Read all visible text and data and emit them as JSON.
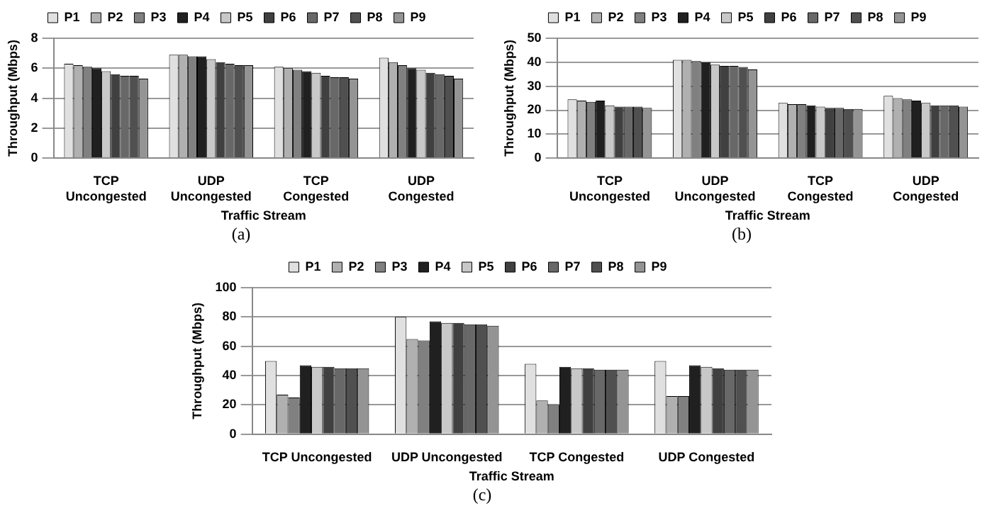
{
  "chart_data": [
    {
      "type": "bar",
      "xlabel": "Traffic Stream",
      "ylabel": "Throughput (Mbps)",
      "categories": [
        "TCP Uncongested",
        "UDP Uncongested",
        "TCP Congested",
        "UDP Congested"
      ],
      "ylim": [
        0,
        8
      ],
      "yticks": [
        0,
        2,
        4,
        6,
        8
      ],
      "grid": "y",
      "legend": "top",
      "annotations": [
        "(a)"
      ],
      "series": [
        {
          "name": "P1",
          "color": "#e0e0e0",
          "values": [
            6.3,
            6.9,
            6.1,
            6.7
          ]
        },
        {
          "name": "P2",
          "color": "#b0b0b0",
          "values": [
            6.2,
            6.9,
            6.0,
            6.4
          ]
        },
        {
          "name": "P3",
          "color": "#808080",
          "values": [
            6.1,
            6.8,
            5.9,
            6.2
          ]
        },
        {
          "name": "P4",
          "color": "#202020",
          "values": [
            6.0,
            6.8,
            5.8,
            6.0
          ]
        },
        {
          "name": "P5",
          "color": "#c8c8c8",
          "values": [
            5.8,
            6.6,
            5.7,
            5.9
          ]
        },
        {
          "name": "P6",
          "color": "#404040",
          "values": [
            5.6,
            6.4,
            5.5,
            5.7
          ]
        },
        {
          "name": "P7",
          "color": "#686868",
          "values": [
            5.5,
            6.3,
            5.4,
            5.6
          ]
        },
        {
          "name": "P8",
          "color": "#505050",
          "values": [
            5.5,
            6.2,
            5.4,
            5.5
          ]
        },
        {
          "name": "P9",
          "color": "#949494",
          "values": [
            5.3,
            6.2,
            5.3,
            5.3
          ]
        }
      ]
    },
    {
      "type": "bar",
      "xlabel": "Traffic Stream",
      "ylabel": "Throughput (Mbps)",
      "categories": [
        "TCP Uncongested",
        "UDP Uncongested",
        "TCP Congested",
        "UDP Congested"
      ],
      "ylim": [
        0,
        50
      ],
      "yticks": [
        0,
        10,
        20,
        30,
        40,
        50
      ],
      "grid": "y",
      "legend": "top",
      "annotations": [
        "(b)"
      ],
      "series": [
        {
          "name": "P1",
          "color": "#e0e0e0",
          "values": [
            24.5,
            41,
            23,
            26
          ]
        },
        {
          "name": "P2",
          "color": "#b0b0b0",
          "values": [
            24,
            41,
            22.5,
            25
          ]
        },
        {
          "name": "P3",
          "color": "#808080",
          "values": [
            23.5,
            40.5,
            22.5,
            24.5
          ]
        },
        {
          "name": "P4",
          "color": "#202020",
          "values": [
            24,
            40,
            22,
            24
          ]
        },
        {
          "name": "P5",
          "color": "#c8c8c8",
          "values": [
            22,
            39,
            21.5,
            23
          ]
        },
        {
          "name": "P6",
          "color": "#404040",
          "values": [
            21.5,
            38.5,
            21,
            22
          ]
        },
        {
          "name": "P7",
          "color": "#686868",
          "values": [
            21.5,
            38.5,
            21,
            22
          ]
        },
        {
          "name": "P8",
          "color": "#505050",
          "values": [
            21.5,
            38,
            20.5,
            22
          ]
        },
        {
          "name": "P9",
          "color": "#949494",
          "values": [
            21,
            37,
            20.5,
            21.5
          ]
        }
      ]
    },
    {
      "type": "bar",
      "xlabel": "Traffic Stream",
      "ylabel": "Throughput (Mbps)",
      "categories": [
        "TCP Uncongested",
        "UDP Uncongested",
        "TCP Congested",
        "UDP Congested"
      ],
      "ylim": [
        0,
        100
      ],
      "yticks": [
        0,
        20,
        40,
        60,
        80,
        100
      ],
      "grid": "y",
      "legend": "top",
      "annotations": [
        "(c)"
      ],
      "series": [
        {
          "name": "P1",
          "color": "#e0e0e0",
          "values": [
            50,
            80,
            48,
            50
          ]
        },
        {
          "name": "P2",
          "color": "#b0b0b0",
          "values": [
            27,
            65,
            23,
            26
          ]
        },
        {
          "name": "P3",
          "color": "#808080",
          "values": [
            25,
            64,
            20,
            26
          ]
        },
        {
          "name": "P4",
          "color": "#202020",
          "values": [
            47,
            77,
            46,
            47
          ]
        },
        {
          "name": "P5",
          "color": "#c8c8c8",
          "values": [
            46,
            76,
            45,
            46
          ]
        },
        {
          "name": "P6",
          "color": "#404040",
          "values": [
            46,
            76,
            45,
            45
          ]
        },
        {
          "name": "P7",
          "color": "#686868",
          "values": [
            45,
            75,
            44,
            44
          ]
        },
        {
          "name": "P8",
          "color": "#505050",
          "values": [
            45,
            75,
            44,
            44
          ]
        },
        {
          "name": "P9",
          "color": "#949494",
          "values": [
            45,
            74,
            44,
            44
          ]
        }
      ]
    }
  ]
}
